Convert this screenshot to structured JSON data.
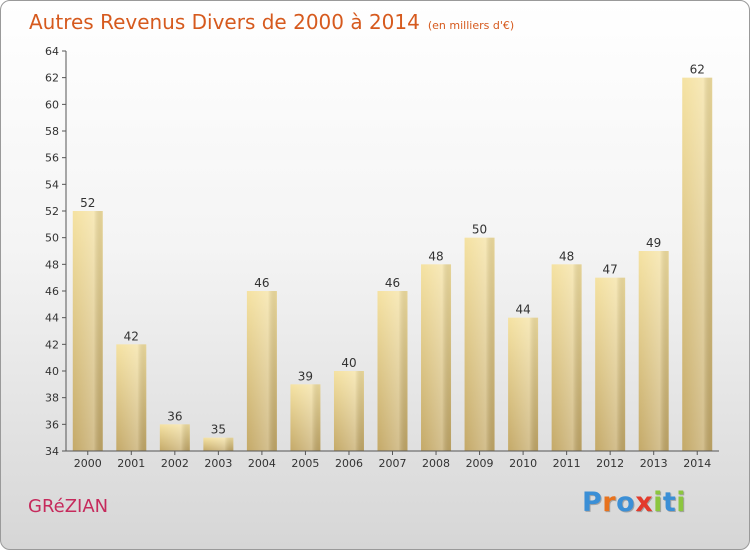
{
  "title": "Autres Revenus Divers de 2000 à 2014",
  "title_unit": "(en milliers d'€)",
  "commune": "GRéZIAN",
  "brand": "Proxiti",
  "brand_colors": [
    "#3b8fd6",
    "#e8731e",
    "#3b8fd6",
    "#e33b2c",
    "#8cc63f",
    "#3b8fd6",
    "#8cc63f"
  ],
  "colors": {
    "title": "#d65a1e",
    "commune": "#c62a5c",
    "bar_light": "#f5e2a2",
    "bar_dark": "#c4a968",
    "axis": "#555555"
  },
  "chart_data": {
    "type": "bar",
    "categories": [
      "2000",
      "2001",
      "2002",
      "2003",
      "2004",
      "2005",
      "2006",
      "2007",
      "2008",
      "2009",
      "2010",
      "2011",
      "2012",
      "2013",
      "2014"
    ],
    "values": [
      52,
      42,
      36,
      35,
      46,
      39,
      40,
      46,
      48,
      50,
      44,
      48,
      47,
      49,
      62
    ],
    "ylim": [
      34,
      64
    ],
    "yticks": [
      34,
      36,
      38,
      40,
      42,
      44,
      46,
      48,
      50,
      52,
      54,
      56,
      58,
      60,
      62,
      64
    ],
    "data_labels": true,
    "grid": false,
    "legend": "none"
  }
}
